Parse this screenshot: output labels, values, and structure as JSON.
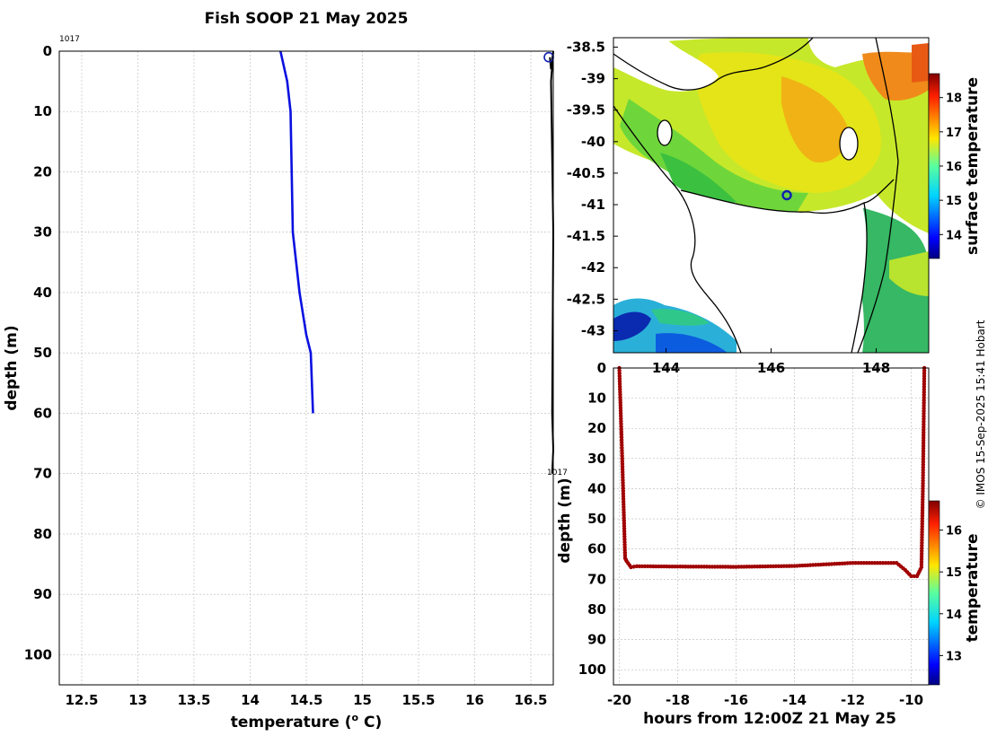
{
  "title": "Fish SOOP 21 May 2025",
  "credit": "© IMOS 15-Sep-2025 15:41 Hobart",
  "colors": {
    "profile_line": "#0a10e0",
    "track_marker": "#1020b0",
    "timeseries_dots": "#a00000"
  },
  "chart_data": [
    {
      "id": "profile",
      "type": "line",
      "xlabel": "temperature (°C)",
      "ylabel": "depth (m)",
      "xlim": [
        12.3,
        16.7
      ],
      "ylim": [
        0,
        105
      ],
      "xticks": [
        "12.5",
        "13",
        "13.5",
        "14",
        "14.5",
        "15",
        "15.5",
        "16",
        "16.5"
      ],
      "yticks": [
        "0",
        "10",
        "20",
        "30",
        "40",
        "50",
        "60",
        "70",
        "80",
        "90",
        "100"
      ],
      "grid": true,
      "profile_id_top": "1017",
      "profile_id_bottom": "1017",
      "series": [
        {
          "name": "temperature profile",
          "x": [
            14.27,
            14.33,
            14.36,
            14.37,
            14.38,
            14.44,
            14.5,
            14.54,
            14.56
          ],
          "y": [
            0,
            5,
            10,
            20,
            30,
            40,
            47,
            50,
            60
          ]
        }
      ],
      "track_trace": {
        "x": [
          16.67,
          16.68,
          16.7,
          16.68,
          16.7,
          16.69,
          16.7,
          16.69
        ],
        "y": [
          1,
          3,
          0,
          5,
          30,
          60,
          66,
          70
        ]
      },
      "track_marker": {
        "x": 16.66,
        "y": 1
      }
    },
    {
      "id": "sst_map",
      "type": "heatmap",
      "ylabel_ticks": [
        "-38.5",
        "-39",
        "-39.5",
        "-40",
        "-40.5",
        "-41",
        "-41.5",
        "-42",
        "-42.5",
        "-43"
      ],
      "xlabel_ticks": [
        "144",
        "146",
        "148"
      ],
      "lon_range": [
        143.0,
        149.0
      ],
      "lat_range": [
        -43.35,
        -38.35
      ],
      "marker": {
        "lon": 146.3,
        "lat": -40.85
      },
      "colorbar": {
        "label": "surface temperature",
        "ticks": [
          "14",
          "15",
          "16",
          "17",
          "18"
        ],
        "range": [
          13.3,
          18.7
        ]
      }
    },
    {
      "id": "depth_time",
      "type": "scatter",
      "xlabel": "hours from 12:00Z 21 May 25",
      "ylabel": "depth (m)",
      "xlim": [
        -20.2,
        -9.4
      ],
      "ylim": [
        0,
        105
      ],
      "xticks": [
        "-20",
        "-18",
        "-16",
        "-14",
        "-12",
        "-10"
      ],
      "yticks": [
        "0",
        "10",
        "20",
        "30",
        "40",
        "50",
        "60",
        "70",
        "80",
        "90",
        "100"
      ],
      "series": [
        {
          "name": "depth",
          "x": [
            -20.0,
            -19.9,
            -19.8,
            -19.75,
            -19.6,
            -19.4,
            -18.0,
            -16.0,
            -14.0,
            -12.0,
            -10.5,
            -10.2,
            -10.0,
            -9.8,
            -9.65,
            -9.6,
            -9.55
          ],
          "y": [
            0,
            30,
            63,
            64,
            66,
            65.7,
            65.8,
            65.9,
            65.6,
            64.6,
            64.6,
            67,
            69,
            69,
            66,
            40,
            0
          ]
        }
      ],
      "colorbar": {
        "label": "temperature",
        "ticks": [
          "13",
          "14",
          "15",
          "16"
        ],
        "range": [
          12.3,
          16.7
        ]
      }
    }
  ]
}
